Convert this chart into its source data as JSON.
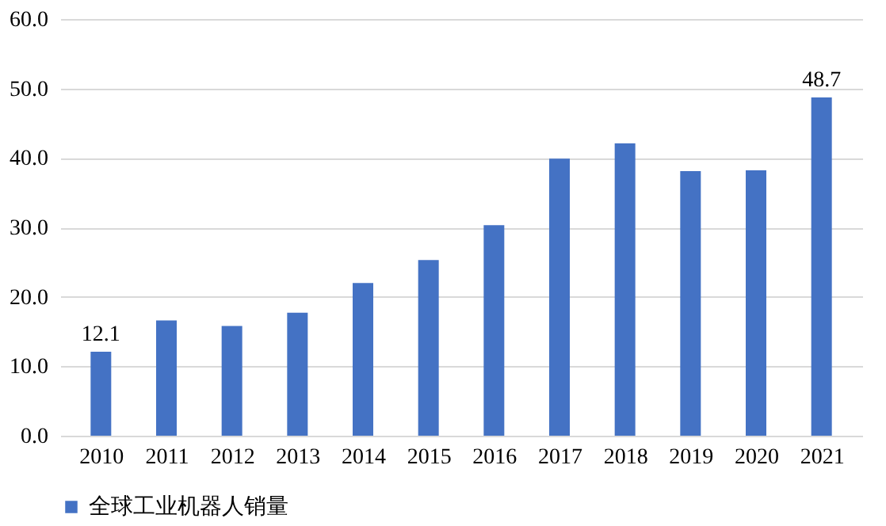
{
  "chart_data": {
    "type": "bar",
    "categories": [
      "2010",
      "2011",
      "2012",
      "2013",
      "2014",
      "2015",
      "2016",
      "2017",
      "2018",
      "2019",
      "2020",
      "2021"
    ],
    "series": [
      {
        "name": "全球工业机器人销量",
        "color": "#4472c4",
        "values": [
          12.1,
          16.6,
          15.8,
          17.7,
          22.0,
          25.3,
          30.3,
          39.9,
          42.1,
          38.1,
          38.2,
          48.7
        ],
        "value_labels": [
          "12.1",
          null,
          null,
          null,
          null,
          null,
          null,
          null,
          null,
          null,
          null,
          "48.7"
        ]
      }
    ],
    "ylim": [
      0,
      60
    ],
    "yticks": [
      {
        "value": 0,
        "label": "0.0"
      },
      {
        "value": 10,
        "label": "10.0"
      },
      {
        "value": 20,
        "label": "20.0"
      },
      {
        "value": 30,
        "label": "30.0"
      },
      {
        "value": 40,
        "label": "40.0"
      },
      {
        "value": 50,
        "label": "50.0"
      },
      {
        "value": 60,
        "label": "60.0"
      }
    ],
    "grid": "y",
    "legend": "bottom"
  }
}
